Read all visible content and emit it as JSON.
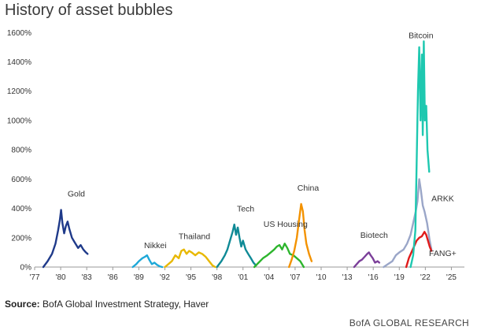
{
  "title": "History of asset bubbles",
  "source_label": "Source:",
  "source_text": "BofA Global Investment Strategy, Haver",
  "brand": "BofA GLOBAL RESEARCH",
  "chart_data": {
    "type": "line",
    "title": "History of asset bubbles",
    "xlabel": "",
    "ylabel": "",
    "x_tick_labels": [
      "'77",
      "'80",
      "'83",
      "'86",
      "'89",
      "'92",
      "'95",
      "'98",
      "'01",
      "'04",
      "'07",
      "'10",
      "'13",
      "'16",
      "'19",
      "'22",
      "'25"
    ],
    "x_ticks": [
      1977,
      1980,
      1983,
      1986,
      1989,
      1992,
      1995,
      1998,
      2001,
      2004,
      2007,
      2010,
      2013,
      2016,
      2019,
      2022,
      2025
    ],
    "xlim": [
      1977,
      2026.5
    ],
    "y_tick_labels": [
      "0%",
      "200%",
      "400%",
      "600%",
      "800%",
      "1000%",
      "1200%",
      "1400%",
      "1600%"
    ],
    "y_ticks": [
      0,
      200,
      400,
      600,
      800,
      1000,
      1200,
      1400,
      1600
    ],
    "ylim": [
      0,
      1650
    ],
    "grid": false,
    "series": [
      {
        "name": "Gold",
        "color": "#1f3a8a",
        "label_at": [
          1981.8,
          480
        ],
        "points": [
          [
            1978.0,
            0
          ],
          [
            1978.5,
            40
          ],
          [
            1979.0,
            90
          ],
          [
            1979.4,
            160
          ],
          [
            1979.7,
            250
          ],
          [
            1979.9,
            320
          ],
          [
            1980.05,
            390
          ],
          [
            1980.2,
            300
          ],
          [
            1980.4,
            230
          ],
          [
            1980.6,
            280
          ],
          [
            1980.8,
            310
          ],
          [
            1981.0,
            260
          ],
          [
            1981.3,
            200
          ],
          [
            1981.6,
            170
          ],
          [
            1982.0,
            130
          ],
          [
            1982.3,
            150
          ],
          [
            1982.6,
            120
          ],
          [
            1982.9,
            100
          ],
          [
            1983.1,
            90
          ]
        ]
      },
      {
        "name": "Nikkei",
        "color": "#1ea8d8",
        "label_at": [
          1990.9,
          130
        ],
        "points": [
          [
            1988.3,
            0
          ],
          [
            1988.7,
            20
          ],
          [
            1989.0,
            40
          ],
          [
            1989.4,
            60
          ],
          [
            1989.7,
            70
          ],
          [
            1989.95,
            80
          ],
          [
            1990.2,
            50
          ],
          [
            1990.5,
            20
          ],
          [
            1990.8,
            30
          ],
          [
            1991.1,
            15
          ],
          [
            1991.4,
            5
          ],
          [
            1991.7,
            0
          ]
        ]
      },
      {
        "name": "Thailand",
        "color": "#e8b800",
        "label_at": [
          1995.4,
          190
        ],
        "points": [
          [
            1992.0,
            0
          ],
          [
            1992.4,
            20
          ],
          [
            1992.8,
            40
          ],
          [
            1993.2,
            80
          ],
          [
            1993.6,
            60
          ],
          [
            1993.9,
            110
          ],
          [
            1994.2,
            120
          ],
          [
            1994.5,
            90
          ],
          [
            1994.8,
            110
          ],
          [
            1995.1,
            100
          ],
          [
            1995.5,
            80
          ],
          [
            1995.9,
            100
          ],
          [
            1996.3,
            90
          ],
          [
            1996.7,
            70
          ],
          [
            1997.1,
            40
          ],
          [
            1997.5,
            10
          ],
          [
            1997.8,
            0
          ]
        ]
      },
      {
        "name": "Tech",
        "color": "#0f8a96",
        "label_at": [
          2001.3,
          380
        ],
        "points": [
          [
            1998.0,
            0
          ],
          [
            1998.5,
            40
          ],
          [
            1998.9,
            80
          ],
          [
            1999.2,
            120
          ],
          [
            1999.5,
            180
          ],
          [
            1999.8,
            240
          ],
          [
            2000.0,
            290
          ],
          [
            2000.2,
            220
          ],
          [
            2000.4,
            270
          ],
          [
            2000.6,
            200
          ],
          [
            2000.8,
            140
          ],
          [
            2001.0,
            180
          ],
          [
            2001.3,
            120
          ],
          [
            2001.6,
            90
          ],
          [
            2001.9,
            60
          ],
          [
            2002.2,
            30
          ],
          [
            2002.5,
            10
          ]
        ]
      },
      {
        "name": "US Housing",
        "color": "#2db52d",
        "label_at": [
          2005.9,
          275
        ],
        "points": [
          [
            2002.3,
            0
          ],
          [
            2002.8,
            30
          ],
          [
            2003.3,
            60
          ],
          [
            2003.8,
            80
          ],
          [
            2004.2,
            100
          ],
          [
            2004.6,
            120
          ],
          [
            2004.9,
            140
          ],
          [
            2005.2,
            150
          ],
          [
            2005.5,
            120
          ],
          [
            2005.8,
            160
          ],
          [
            2006.1,
            130
          ],
          [
            2006.4,
            90
          ],
          [
            2006.8,
            80
          ],
          [
            2007.2,
            60
          ],
          [
            2007.6,
            40
          ],
          [
            2008.0,
            0
          ]
        ]
      },
      {
        "name": "China",
        "color": "#f39200",
        "label_at": [
          2008.5,
          520
        ],
        "points": [
          [
            2006.3,
            0
          ],
          [
            2006.6,
            50
          ],
          [
            2006.9,
            110
          ],
          [
            2007.2,
            200
          ],
          [
            2007.45,
            320
          ],
          [
            2007.7,
            430
          ],
          [
            2007.9,
            380
          ],
          [
            2008.1,
            250
          ],
          [
            2008.3,
            160
          ],
          [
            2008.6,
            90
          ],
          [
            2008.9,
            40
          ]
        ]
      },
      {
        "name": "Biotech",
        "color": "#7b3f99",
        "label_at": [
          2016.1,
          200
        ],
        "points": [
          [
            2013.8,
            0
          ],
          [
            2014.1,
            20
          ],
          [
            2014.4,
            40
          ],
          [
            2014.7,
            50
          ],
          [
            2015.0,
            70
          ],
          [
            2015.3,
            90
          ],
          [
            2015.5,
            100
          ],
          [
            2015.7,
            80
          ],
          [
            2015.95,
            60
          ],
          [
            2016.2,
            30
          ],
          [
            2016.5,
            40
          ],
          [
            2016.7,
            30
          ]
        ]
      },
      {
        "name": "ARKK",
        "color": "#9aa6c8",
        "label_at": [
          2024.0,
          450
        ],
        "points": [
          [
            2017.2,
            0
          ],
          [
            2017.7,
            20
          ],
          [
            2018.2,
            40
          ],
          [
            2018.6,
            80
          ],
          [
            2019.0,
            100
          ],
          [
            2019.5,
            120
          ],
          [
            2019.9,
            160
          ],
          [
            2020.3,
            220
          ],
          [
            2020.6,
            300
          ],
          [
            2020.9,
            380
          ],
          [
            2021.1,
            450
          ],
          [
            2021.3,
            600
          ],
          [
            2021.5,
            520
          ],
          [
            2021.7,
            420
          ],
          [
            2021.9,
            380
          ],
          [
            2022.2,
            300
          ],
          [
            2022.5,
            180
          ],
          [
            2022.7,
            120
          ]
        ]
      },
      {
        "name": "FANG+",
        "color": "#e01b1b",
        "label_at": [
          2024.0,
          75
        ],
        "points": [
          [
            2019.8,
            0
          ],
          [
            2020.1,
            60
          ],
          [
            2020.4,
            100
          ],
          [
            2020.7,
            140
          ],
          [
            2021.0,
            180
          ],
          [
            2021.3,
            200
          ],
          [
            2021.6,
            210
          ],
          [
            2021.9,
            240
          ],
          [
            2022.1,
            220
          ],
          [
            2022.3,
            180
          ],
          [
            2022.5,
            140
          ],
          [
            2022.7,
            110
          ]
        ]
      },
      {
        "name": "Bitcoin",
        "color": "#1ec8b0",
        "label_at": [
          2021.5,
          1560
        ],
        "points": [
          [
            2020.3,
            0
          ],
          [
            2020.6,
            80
          ],
          [
            2020.85,
            250
          ],
          [
            2021.0,
            700
          ],
          [
            2021.15,
            1200
          ],
          [
            2021.3,
            1500
          ],
          [
            2021.45,
            1000
          ],
          [
            2021.6,
            1450
          ],
          [
            2021.7,
            900
          ],
          [
            2021.82,
            1540
          ],
          [
            2021.95,
            1000
          ],
          [
            2022.1,
            1100
          ],
          [
            2022.25,
            800
          ],
          [
            2022.45,
            650
          ]
        ]
      }
    ]
  }
}
